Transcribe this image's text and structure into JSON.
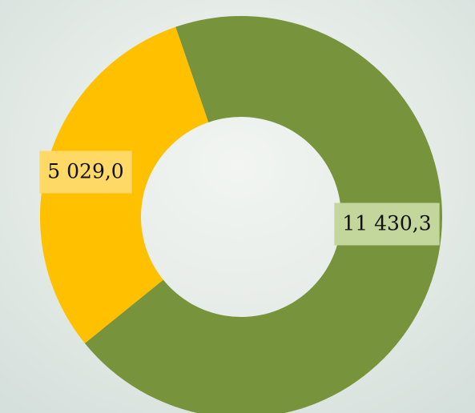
{
  "chart_data": {
    "type": "donut",
    "values": [
      5029.0,
      11430.3
    ],
    "value_labels": [
      "5 029,0",
      "11 430,3"
    ],
    "colors": [
      "#ffc000",
      "#77933c"
    ],
    "label_backgrounds": [
      "#ffd966",
      "#c3d69b"
    ]
  }
}
